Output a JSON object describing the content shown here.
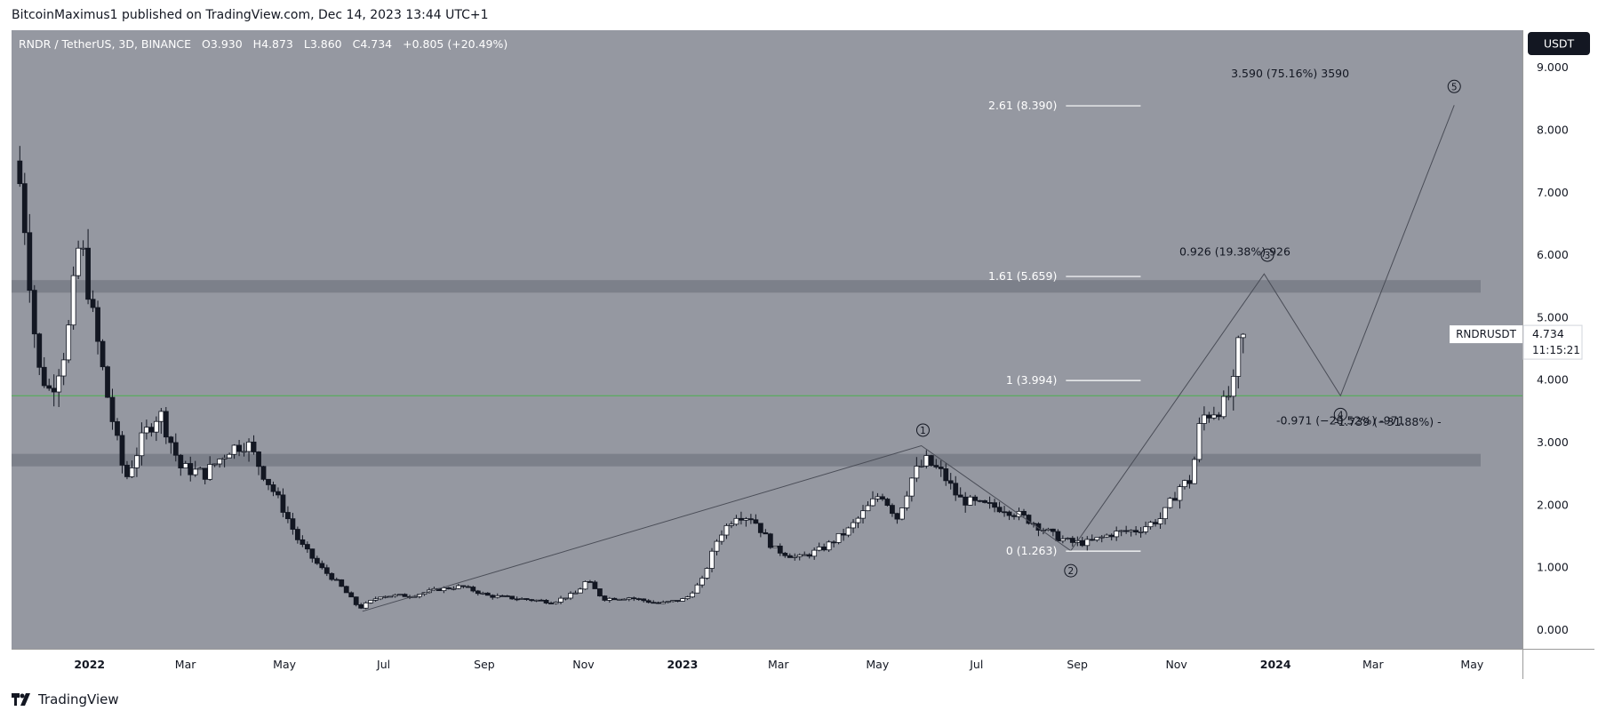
{
  "header": {
    "attribution": "BitcoinMaximus1 published on TradingView.com, Dec 14, 2023 13:44 UTC+1"
  },
  "footer": {
    "brand": "TradingView"
  },
  "chart_data": {
    "type": "candlestick",
    "legend_line": "RNDR / TetherUS, 3D, BINANCE",
    "ohlc": {
      "open_label": "O",
      "open": "3.930",
      "high_label": "H",
      "high": "4.873",
      "low_label": "L",
      "low": "3.860",
      "close_label": "C",
      "close": "4.734",
      "change": "+0.805 (+20.49%)"
    },
    "currency_button": "USDT",
    "price_label": {
      "symbol": "RNDRUSDT",
      "price": "4.734",
      "countdown": "11:15:21"
    },
    "y_ticks": [
      "0.000",
      "1.000",
      "2.000",
      "3.000",
      "4.000",
      "5.000",
      "6.000",
      "7.000",
      "8.000",
      "9.000"
    ],
    "ylim": [
      -0.3,
      9.6
    ],
    "xlim": [
      "2021-11-14",
      "2024-06-01"
    ],
    "x_ticks": [
      {
        "label": "2022",
        "date": "2022-01-01",
        "bold": true
      },
      {
        "label": "Mar",
        "date": "2022-03-01",
        "bold": false
      },
      {
        "label": "May",
        "date": "2022-05-01",
        "bold": false
      },
      {
        "label": "Jul",
        "date": "2022-07-01",
        "bold": false
      },
      {
        "label": "Sep",
        "date": "2022-09-01",
        "bold": false
      },
      {
        "label": "Nov",
        "date": "2022-11-01",
        "bold": false
      },
      {
        "label": "2023",
        "date": "2023-01-01",
        "bold": true
      },
      {
        "label": "Mar",
        "date": "2023-03-01",
        "bold": false
      },
      {
        "label": "May",
        "date": "2023-05-01",
        "bold": false
      },
      {
        "label": "Jul",
        "date": "2023-07-01",
        "bold": false
      },
      {
        "label": "Sep",
        "date": "2023-09-01",
        "bold": false
      },
      {
        "label": "Nov",
        "date": "2023-11-01",
        "bold": false
      },
      {
        "label": "2024",
        "date": "2024-01-01",
        "bold": true
      },
      {
        "label": "Mar",
        "date": "2024-03-01",
        "bold": false
      },
      {
        "label": "May",
        "date": "2024-05-01",
        "bold": false
      }
    ],
    "price_path": [
      [
        "2021-11-18",
        7.8
      ],
      [
        "2021-11-24",
        6.5
      ],
      [
        "2021-12-02",
        4.2
      ],
      [
        "2021-12-10",
        3.8
      ],
      [
        "2021-12-20",
        4.6
      ],
      [
        "2021-12-28",
        6.3
      ],
      [
        "2022-01-05",
        5.0
      ],
      [
        "2022-01-15",
        3.6
      ],
      [
        "2022-01-25",
        2.4
      ],
      [
        "2022-02-05",
        3.1
      ],
      [
        "2022-02-15",
        3.5
      ],
      [
        "2022-02-28",
        2.6
      ],
      [
        "2022-03-15",
        2.5
      ],
      [
        "2022-03-30",
        2.9
      ],
      [
        "2022-04-10",
        3.0
      ],
      [
        "2022-04-20",
        2.5
      ],
      [
        "2022-05-01",
        2.0
      ],
      [
        "2022-05-12",
        1.4
      ],
      [
        "2022-05-25",
        1.0
      ],
      [
        "2022-06-05",
        0.75
      ],
      [
        "2022-06-18",
        0.35
      ],
      [
        "2022-07-01",
        0.55
      ],
      [
        "2022-07-20",
        0.55
      ],
      [
        "2022-08-05",
        0.65
      ],
      [
        "2022-08-20",
        0.7
      ],
      [
        "2022-09-05",
        0.55
      ],
      [
        "2022-09-25",
        0.5
      ],
      [
        "2022-10-15",
        0.45
      ],
      [
        "2022-10-30",
        0.6
      ],
      [
        "2022-11-05",
        0.8
      ],
      [
        "2022-11-15",
        0.5
      ],
      [
        "2022-12-01",
        0.52
      ],
      [
        "2022-12-20",
        0.42
      ],
      [
        "2023-01-05",
        0.5
      ],
      [
        "2023-01-15",
        0.8
      ],
      [
        "2023-01-25",
        1.5
      ],
      [
        "2023-02-05",
        1.85
      ],
      [
        "2023-02-15",
        1.8
      ],
      [
        "2023-02-28",
        1.3
      ],
      [
        "2023-03-15",
        1.15
      ],
      [
        "2023-03-30",
        1.3
      ],
      [
        "2023-04-15",
        1.6
      ],
      [
        "2023-04-25",
        1.9
      ],
      [
        "2023-05-05",
        2.2
      ],
      [
        "2023-05-15",
        1.8
      ],
      [
        "2023-05-25",
        2.5
      ],
      [
        "2023-06-02",
        2.7
      ],
      [
        "2023-06-12",
        2.5
      ],
      [
        "2023-06-22",
        2.1
      ],
      [
        "2023-07-05",
        2.0
      ],
      [
        "2023-07-20",
        1.95
      ],
      [
        "2023-08-05",
        1.75
      ],
      [
        "2023-08-20",
        1.5
      ],
      [
        "2023-08-30",
        1.4
      ],
      [
        "2023-09-10",
        1.4
      ],
      [
        "2023-09-25",
        1.55
      ],
      [
        "2023-10-10",
        1.6
      ],
      [
        "2023-10-25",
        1.8
      ],
      [
        "2023-11-05",
        2.3
      ],
      [
        "2023-11-12",
        2.4
      ],
      [
        "2023-11-18",
        3.4
      ],
      [
        "2023-11-25",
        3.5
      ],
      [
        "2023-12-02",
        3.6
      ],
      [
        "2023-12-08",
        3.9
      ],
      [
        "2023-12-12",
        4.73
      ]
    ],
    "support_zones": [
      {
        "low": 5.4,
        "high": 5.6
      },
      {
        "low": 2.62,
        "high": 2.82
      }
    ],
    "green_line": 3.75,
    "fib_levels": [
      {
        "label": "2.61 (8.390)",
        "value": 8.39
      },
      {
        "label": "1.61 (5.659)",
        "value": 5.659
      },
      {
        "label": "1 (3.994)",
        "value": 3.994
      },
      {
        "label": "0 (1.263)",
        "value": 1.263
      }
    ],
    "fib_line_range": [
      "2023-08-25",
      "2023-10-10"
    ],
    "wave_path": [
      [
        "2022-06-18",
        0.3
      ],
      [
        "2023-05-28",
        2.95
      ],
      [
        "2023-08-28",
        1.27
      ],
      [
        "2023-12-25",
        5.7
      ],
      [
        "2024-02-10",
        3.75
      ],
      [
        "2024-04-20",
        8.4
      ]
    ],
    "wave_labels": [
      {
        "n": "1",
        "date": "2023-05-29",
        "value": 3.2
      },
      {
        "n": "2",
        "date": "2023-08-28",
        "value": 0.95
      },
      {
        "n": "3",
        "date": "2023-12-27",
        "value": 6.0
      },
      {
        "n": "4",
        "date": "2024-02-10",
        "value": 3.45
      },
      {
        "n": "5",
        "date": "2024-04-20",
        "value": 8.7
      }
    ],
    "annotations": [
      {
        "text": "3.590 (75.16%) 3590",
        "date": "2024-01-10",
        "value": 8.9
      },
      {
        "text": "0.926 (19.38%) 926",
        "date": "2023-12-07",
        "value": 6.05
      },
      {
        "text": "-0.971 (−20.52%) -971",
        "date": "2024-02-10",
        "value": 3.35
      },
      {
        "text": "-1.739 (−31.88%) -",
        "date": "2024-03-10",
        "value": 3.33
      }
    ]
  }
}
